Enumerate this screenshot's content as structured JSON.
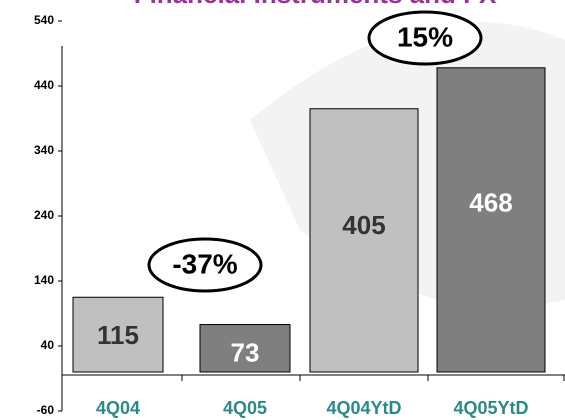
{
  "chart_data": {
    "type": "bar",
    "title": "Financial Instruments and FX",
    "categories": [
      "4Q04",
      "4Q05",
      "4Q04YtD",
      "4Q05YtD"
    ],
    "values": [
      115,
      73,
      405,
      468
    ],
    "colors": [
      "#c0c0c0",
      "#7f7f7f",
      "#c0c0c0",
      "#7f7f7f"
    ],
    "ylim": [
      -60,
      540
    ],
    "yticks": [
      -60,
      40,
      140,
      240,
      340,
      440,
      540
    ],
    "annotations": [
      "-37%",
      "15%"
    ]
  }
}
